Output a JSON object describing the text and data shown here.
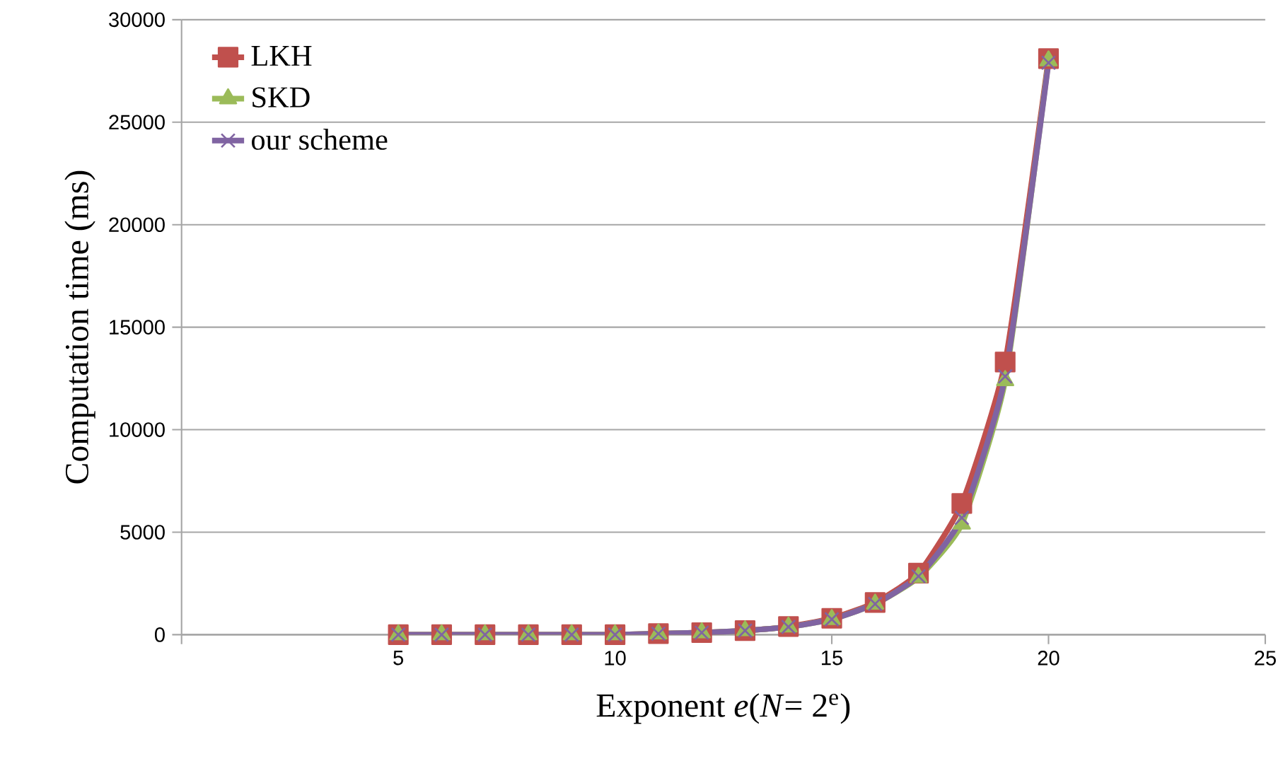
{
  "chart_data": {
    "type": "line",
    "xlabel": "Exponent *e*(*N*= 2$^{e}$)",
    "ylabel": "Computation time (ms)",
    "x": [
      5,
      6,
      7,
      8,
      9,
      10,
      11,
      12,
      13,
      14,
      15,
      16,
      17,
      18,
      19,
      20
    ],
    "series": [
      {
        "name": "LKH",
        "color": "#c0504d",
        "marker": "square",
        "values": [
          0,
          0,
          0,
          0,
          0,
          0,
          50,
          100,
          200,
          400,
          800,
          1570,
          3000,
          6400,
          13300,
          28100
        ]
      },
      {
        "name": "SKD",
        "color": "#9bbb59",
        "marker": "triangle",
        "values": [
          0,
          0,
          0,
          0,
          0,
          0,
          50,
          100,
          200,
          380,
          750,
          1500,
          2800,
          5400,
          12400,
          28000
        ]
      },
      {
        "name": "our scheme",
        "color": "#8064a2",
        "marker": "cross",
        "values": [
          0,
          0,
          0,
          0,
          0,
          0,
          50,
          100,
          200,
          380,
          750,
          1500,
          2850,
          5700,
          12600,
          27900
        ]
      }
    ],
    "xlim": [
      0,
      25
    ],
    "xticks": [
      {
        "value": 0,
        "label": null
      },
      5,
      10,
      15,
      20,
      25
    ],
    "ylim": [
      0,
      30000
    ],
    "yticks": [
      0,
      5000,
      10000,
      15000,
      20000,
      25000,
      30000
    ],
    "grid": "y",
    "legend": "top left",
    "line_style": "solid"
  }
}
